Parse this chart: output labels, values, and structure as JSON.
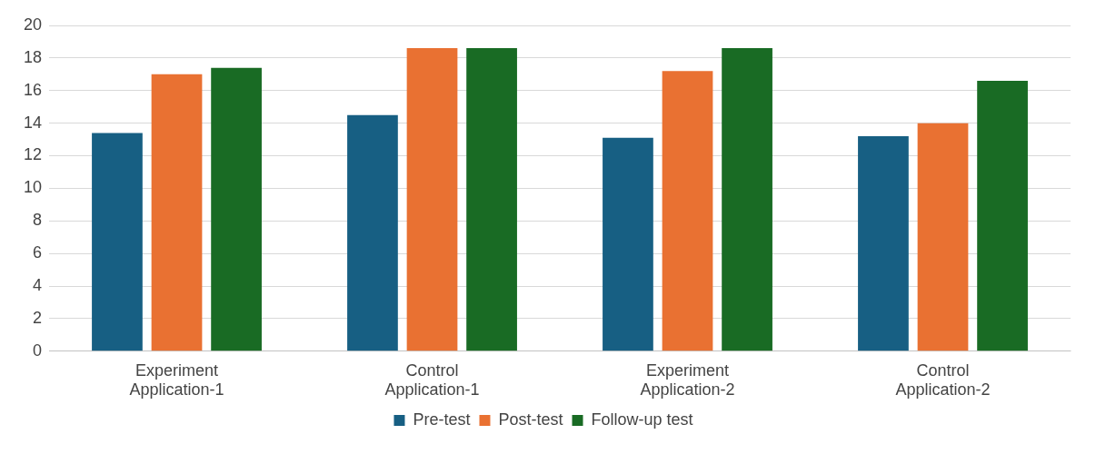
{
  "chart_data": {
    "type": "bar",
    "categories": [
      "Experiment\nApplication-1",
      "Control\nApplication-1",
      "Experiment\nApplication-2",
      "Control\nApplication-2"
    ],
    "series": [
      {
        "name": "Pre-test",
        "color": "#175f83",
        "values": [
          13.4,
          14.5,
          13.1,
          13.2
        ]
      },
      {
        "name": "Post-test",
        "color": "#e97132",
        "values": [
          17.0,
          18.6,
          17.2,
          14.0
        ]
      },
      {
        "name": "Follow-up test",
        "color": "#196b24",
        "values": [
          17.4,
          18.6,
          18.6,
          16.6
        ]
      }
    ],
    "ylim": [
      0,
      20
    ],
    "yticks": [
      0,
      2,
      4,
      6,
      8,
      10,
      12,
      14,
      16,
      18,
      20
    ],
    "grid": "y",
    "legend": "bottom"
  }
}
